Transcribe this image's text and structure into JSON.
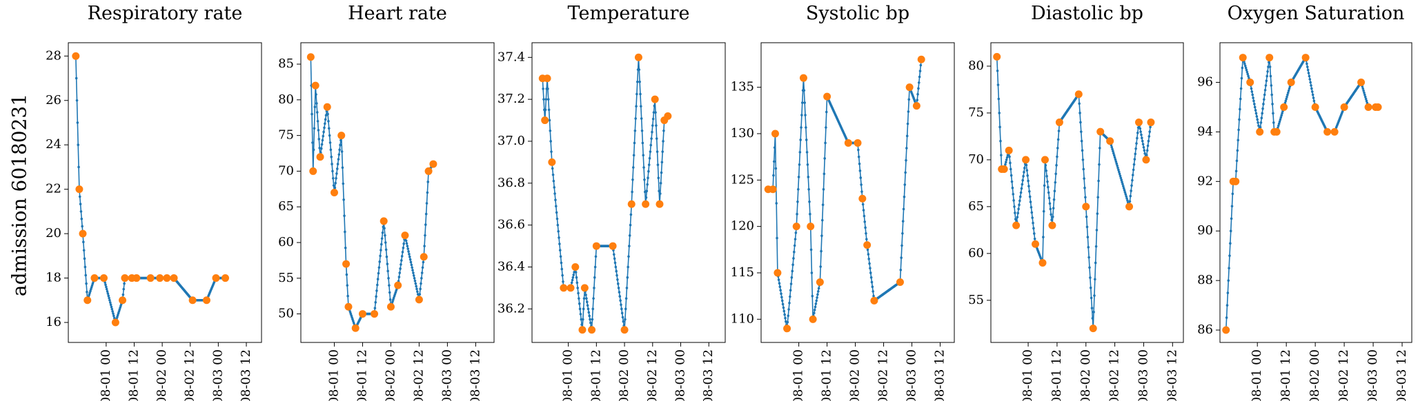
{
  "figure": {
    "row_label": "admission 60180231"
  },
  "colors": {
    "line": "#1f77b4",
    "observed": "#ff7f0e",
    "axes": "#000000"
  },
  "chart_data": [
    {
      "type": "line",
      "title": "Respiratory rate",
      "xlim": [
        -3.2,
        79.5
      ],
      "ylim": [
        15.1,
        28.6
      ],
      "yticks": [
        16,
        18,
        20,
        22,
        24,
        26,
        28
      ],
      "xticks": [
        {
          "x": 13,
          "label": "08-01 00"
        },
        {
          "x": 25,
          "label": "08-01 12"
        },
        {
          "x": 37,
          "label": "08-02 00"
        },
        {
          "x": 49,
          "label": "08-02 12"
        },
        {
          "x": 61,
          "label": "08-03 00"
        },
        {
          "x": 73,
          "label": "08-03 12"
        }
      ],
      "series": [
        {
          "role": "observed",
          "points": [
            [
              0,
              28
            ],
            [
              1.5,
              22
            ],
            [
              3,
              20
            ],
            [
              5,
              17
            ],
            [
              8,
              18
            ],
            [
              12,
              18
            ],
            [
              17,
              16
            ],
            [
              20,
              17
            ],
            [
              21,
              18
            ],
            [
              24,
              18
            ],
            [
              26,
              18
            ],
            [
              32,
              18
            ],
            [
              36,
              18
            ],
            [
              39,
              18
            ],
            [
              42,
              18
            ],
            [
              50,
              17
            ],
            [
              56,
              17
            ],
            [
              60,
              18
            ],
            [
              64,
              18
            ]
          ]
        }
      ]
    },
    {
      "type": "line",
      "title": "Heart rate",
      "xlim": [
        -4.2,
        77.8
      ],
      "ylim": [
        46.0,
        88.0
      ],
      "yticks": [
        50,
        55,
        60,
        65,
        70,
        75,
        80,
        85
      ],
      "xticks": [
        {
          "x": 10,
          "label": "08-01 00"
        },
        {
          "x": 22,
          "label": "08-01 12"
        },
        {
          "x": 34,
          "label": "08-02 00"
        },
        {
          "x": 46,
          "label": "08-02 12"
        },
        {
          "x": 58,
          "label": "08-03 00"
        },
        {
          "x": 70,
          "label": "08-03 12"
        }
      ],
      "series": [
        {
          "role": "observed",
          "points": [
            [
              0,
              86
            ],
            [
              1,
              70
            ],
            [
              2,
              82
            ],
            [
              4,
              72
            ],
            [
              7,
              79
            ],
            [
              10,
              67
            ],
            [
              13,
              75
            ],
            [
              15,
              57
            ],
            [
              16,
              51
            ],
            [
              19,
              48
            ],
            [
              22,
              50
            ],
            [
              27,
              50
            ],
            [
              31,
              63
            ],
            [
              34,
              51
            ],
            [
              37,
              54
            ],
            [
              40,
              61
            ],
            [
              46,
              52
            ],
            [
              48,
              58
            ],
            [
              50,
              70
            ],
            [
              52,
              71
            ]
          ]
        }
      ]
    },
    {
      "type": "line",
      "title": "Temperature",
      "xlim": [
        -4.5,
        78.0
      ],
      "ylim": [
        36.04,
        37.47
      ],
      "yticks": [
        36.2,
        36.4,
        36.6,
        36.8,
        37.0,
        37.2,
        37.4
      ],
      "xticks": [
        {
          "x": 11,
          "label": "08-01 00"
        },
        {
          "x": 23,
          "label": "08-01 12"
        },
        {
          "x": 35,
          "label": "08-02 00"
        },
        {
          "x": 47,
          "label": "08-02 12"
        },
        {
          "x": 59,
          "label": "08-03 00"
        },
        {
          "x": 71,
          "label": "08-03 12"
        }
      ],
      "series": [
        {
          "role": "observed",
          "points": [
            [
              0,
              37.3
            ],
            [
              1,
              37.1
            ],
            [
              2,
              37.3
            ],
            [
              4,
              36.9
            ],
            [
              9,
              36.3
            ],
            [
              12,
              36.3
            ],
            [
              14,
              36.4
            ],
            [
              17,
              36.1
            ],
            [
              18,
              36.3
            ],
            [
              21,
              36.1
            ],
            [
              23,
              36.5
            ],
            [
              30,
              36.5
            ],
            [
              35,
              36.1
            ],
            [
              38,
              36.7
            ],
            [
              41,
              37.4
            ],
            [
              44,
              36.7
            ],
            [
              48,
              37.2
            ],
            [
              50,
              36.7
            ],
            [
              52,
              37.1
            ],
            [
              53.5,
              37.12
            ]
          ]
        }
      ]
    },
    {
      "type": "line",
      "title": "Systolic bp",
      "xlim": [
        -3.0,
        79.0
      ],
      "ylim": [
        107.5,
        139.8
      ],
      "yticks": [
        110,
        115,
        120,
        125,
        130,
        135
      ],
      "xticks": [
        {
          "x": 13,
          "label": "08-01 00"
        },
        {
          "x": 25,
          "label": "08-01 12"
        },
        {
          "x": 37,
          "label": "08-02 00"
        },
        {
          "x": 49,
          "label": "08-02 12"
        },
        {
          "x": 61,
          "label": "08-03 00"
        },
        {
          "x": 73,
          "label": "08-03 12"
        }
      ],
      "series": [
        {
          "role": "observed",
          "points": [
            [
              0,
              124
            ],
            [
              2,
              124
            ],
            [
              3,
              130
            ],
            [
              4,
              115
            ],
            [
              8,
              109
            ],
            [
              12,
              120
            ],
            [
              15,
              136
            ],
            [
              18,
              120
            ],
            [
              19,
              110
            ],
            [
              22,
              114
            ],
            [
              25,
              134
            ],
            [
              34,
              129
            ],
            [
              38,
              129
            ],
            [
              40,
              123
            ],
            [
              42,
              118
            ],
            [
              45,
              112
            ],
            [
              56,
              114
            ],
            [
              60,
              135
            ],
            [
              63,
              133
            ],
            [
              65,
              138
            ]
          ]
        }
      ]
    },
    {
      "type": "line",
      "title": "Diastolic bp",
      "xlim": [
        -2.5,
        77.5
      ],
      "ylim": [
        50.5,
        82.5
      ],
      "yticks": [
        55,
        60,
        65,
        70,
        75,
        80
      ],
      "xticks": [
        {
          "x": 13,
          "label": "08-01 00"
        },
        {
          "x": 25,
          "label": "08-01 12"
        },
        {
          "x": 37,
          "label": "08-02 00"
        },
        {
          "x": 49,
          "label": "08-02 12"
        },
        {
          "x": 61,
          "label": "08-03 00"
        },
        {
          "x": 73,
          "label": "08-03 12"
        }
      ],
      "series": [
        {
          "role": "observed",
          "points": [
            [
              0,
              81
            ],
            [
              2,
              69
            ],
            [
              3,
              69
            ],
            [
              5,
              71
            ],
            [
              8,
              63
            ],
            [
              12,
              70
            ],
            [
              16,
              61
            ],
            [
              19,
              59
            ],
            [
              20,
              70
            ],
            [
              23,
              63
            ],
            [
              26,
              74
            ],
            [
              34,
              77
            ],
            [
              37,
              65
            ],
            [
              40,
              52
            ],
            [
              43,
              73
            ],
            [
              47,
              72
            ],
            [
              55,
              65
            ],
            [
              59,
              74
            ],
            [
              62,
              70
            ],
            [
              64,
              74
            ]
          ]
        }
      ]
    },
    {
      "type": "line",
      "title": "Oxygen Saturation",
      "xlim": [
        -2.5,
        77.0
      ],
      "ylim": [
        85.5,
        97.6
      ],
      "yticks": [
        86,
        88,
        90,
        92,
        94,
        96
      ],
      "xticks": [
        {
          "x": 13,
          "label": "08-01 00"
        },
        {
          "x": 25,
          "label": "08-01 12"
        },
        {
          "x": 37,
          "label": "08-02 00"
        },
        {
          "x": 49,
          "label": "08-02 12"
        },
        {
          "x": 61,
          "label": "08-03 00"
        },
        {
          "x": 73,
          "label": "08-03 12"
        }
      ],
      "series": [
        {
          "role": "observed",
          "points": [
            [
              0,
              86
            ],
            [
              3,
              92
            ],
            [
              4,
              92
            ],
            [
              7,
              97
            ],
            [
              10,
              96
            ],
            [
              14,
              94
            ],
            [
              18,
              97
            ],
            [
              20,
              94
            ],
            [
              21,
              94
            ],
            [
              24,
              95
            ],
            [
              27,
              96
            ],
            [
              33,
              97
            ],
            [
              37,
              95
            ],
            [
              42,
              94
            ],
            [
              45,
              94
            ],
            [
              49,
              95
            ],
            [
              56,
              96
            ],
            [
              59,
              95
            ],
            [
              62,
              95
            ],
            [
              63,
              95
            ]
          ]
        }
      ]
    }
  ]
}
